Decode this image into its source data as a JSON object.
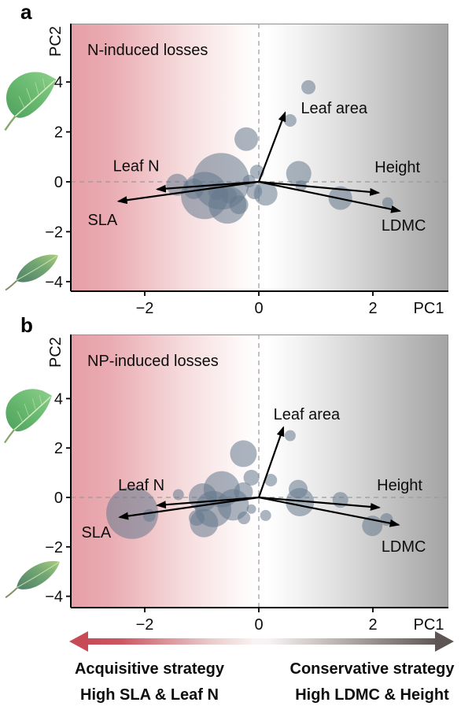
{
  "figure": {
    "panels": [
      {
        "letter": "a",
        "title": "N-induced losses",
        "xlabel": "PC1",
        "ylabel": "PC2"
      },
      {
        "letter": "b",
        "title": "NP-induced losses",
        "xlabel": "PC1",
        "ylabel": "PC2"
      }
    ],
    "strategy_axis": {
      "left_title": "Acquisitive strategy",
      "left_subtitle": "High SLA & Leaf N",
      "right_title": "Conservative strategy",
      "right_subtitle": "High LDMC & Height",
      "left_color": "#c84a57",
      "right_color": "#5d5654"
    },
    "icons": {
      "broad_leaf": "broad-leaf-icon",
      "narrow_leaf": "narrow-leaf-icon"
    },
    "style": {
      "bubble_color": "rgba(100,120,140,0.55)",
      "gradient_left": "#e79fa7",
      "gradient_right": "#a5a4a4",
      "arrow_color": "#000000",
      "dashed_line_color": "#9a9a9a"
    }
  },
  "chart_data": [
    {
      "panel": "a",
      "type": "scatter",
      "subtype": "pca-biplot-bubble",
      "title": "N-induced losses",
      "xlabel": "PC1",
      "ylabel": "PC2",
      "xlim": [
        -3.3,
        3.3
      ],
      "ylim": [
        -4.4,
        6.35
      ],
      "xticks": [
        -2,
        0,
        2
      ],
      "yticks": [
        4,
        2,
        0,
        -2,
        -4
      ],
      "xtick_labels": [
        "−2",
        "0",
        "2"
      ],
      "ytick_labels": [
        "4",
        "2",
        "0",
        "−2",
        "−4"
      ],
      "zero_lines": true,
      "arrows": [
        {
          "label": "Leaf area",
          "x": 0.46,
          "y": 2.77,
          "lx": 1.32,
          "ly": 2.97
        },
        {
          "label": "Height",
          "x": 2.1,
          "y": -0.44,
          "lx": 2.43,
          "ly": 0.6
        },
        {
          "label": "LDMC",
          "x": 2.47,
          "y": -1.17,
          "lx": 2.54,
          "ly": -1.73
        },
        {
          "label": "Leaf N",
          "x": -1.78,
          "y": -0.3,
          "lx": -2.15,
          "ly": 0.64
        },
        {
          "label": "SLA",
          "x": -2.46,
          "y": -0.78,
          "lx": -2.74,
          "ly": -1.51
        }
      ],
      "bubbles": [
        [
          0.87,
          3.79,
          9
        ],
        [
          0.55,
          2.46,
          8
        ],
        [
          -0.22,
          1.71,
          15
        ],
        [
          -0.03,
          0.4,
          9
        ],
        [
          0.7,
          0.33,
          16
        ],
        [
          0.74,
          -0.16,
          7
        ],
        [
          1.43,
          -0.65,
          15
        ],
        [
          2.26,
          -0.84,
          7
        ],
        [
          -1.43,
          -0.12,
          14
        ],
        [
          -1.14,
          -0.28,
          13
        ],
        [
          -0.66,
          0.02,
          36
        ],
        [
          -0.95,
          -0.55,
          30
        ],
        [
          -0.55,
          -0.92,
          24
        ],
        [
          -0.74,
          -0.38,
          11
        ],
        [
          -0.52,
          -0.55,
          10
        ],
        [
          -0.35,
          -0.92,
          12
        ],
        [
          -0.17,
          0.03,
          8
        ],
        [
          -0.08,
          -0.38,
          10
        ],
        [
          0.12,
          -0.48,
          15
        ]
      ]
    },
    {
      "panel": "b",
      "type": "scatter",
      "subtype": "pca-biplot-bubble",
      "title": "NP-induced losses",
      "xlabel": "PC1",
      "ylabel": "PC2",
      "xlim": [
        -3.3,
        3.3
      ],
      "ylim": [
        -4.45,
        6.6
      ],
      "xticks": [
        -2,
        0,
        2
      ],
      "yticks": [
        4,
        2,
        0,
        -2,
        -4
      ],
      "xtick_labels": [
        "−2",
        "0",
        "2"
      ],
      "ytick_labels": [
        "4",
        "2",
        "0",
        "−2",
        "−4"
      ],
      "zero_lines": true,
      "arrows": [
        {
          "label": "Leaf area",
          "x": 0.43,
          "y": 2.83,
          "lx": 0.84,
          "ly": 3.38
        },
        {
          "label": "Height",
          "x": 2.11,
          "y": -0.41,
          "lx": 2.47,
          "ly": 0.51
        },
        {
          "label": "LDMC",
          "x": 2.45,
          "y": -1.11,
          "lx": 2.54,
          "ly": -1.97
        },
        {
          "label": "Leaf N",
          "x": -1.78,
          "y": -0.32,
          "lx": -2.06,
          "ly": 0.51
        },
        {
          "label": "SLA",
          "x": -2.44,
          "y": -0.8,
          "lx": -2.85,
          "ly": -1.4
        }
      ],
      "bubbles": [
        [
          -2.22,
          -0.63,
          33
        ],
        [
          -1.92,
          -0.73,
          8
        ],
        [
          -1.41,
          0.11,
          7
        ],
        [
          -0.98,
          0.0,
          18
        ],
        [
          -0.65,
          0.33,
          23
        ],
        [
          -0.8,
          -0.47,
          23
        ],
        [
          -0.96,
          -1.04,
          18
        ],
        [
          -1.09,
          -0.83,
          10
        ],
        [
          -0.45,
          -0.3,
          20
        ],
        [
          -0.27,
          0.23,
          12
        ],
        [
          -0.13,
          0.8,
          10
        ],
        [
          0.21,
          0.7,
          8
        ],
        [
          -0.27,
          1.77,
          17
        ],
        [
          0.55,
          2.5,
          7
        ],
        [
          -0.13,
          -0.47,
          6
        ],
        [
          0.12,
          -0.73,
          7
        ],
        [
          -0.26,
          -0.83,
          8
        ],
        [
          0.72,
          -0.19,
          18
        ],
        [
          0.69,
          0.33,
          12
        ],
        [
          1.43,
          -0.1,
          10
        ],
        [
          1.99,
          -1.15,
          13
        ],
        [
          2.24,
          -0.89,
          8
        ]
      ]
    }
  ]
}
